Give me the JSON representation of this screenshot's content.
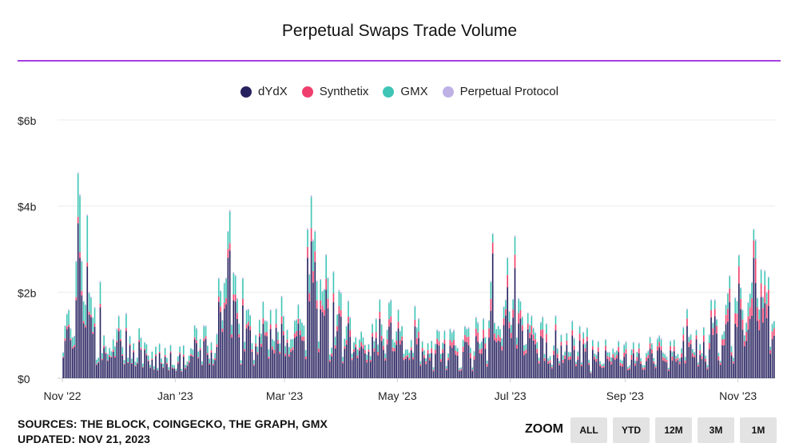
{
  "header": {
    "title": "Perpetual Swaps Trade Volume"
  },
  "legend": [
    {
      "label": "dYdX",
      "color": "#26215f"
    },
    {
      "label": "Synthetix",
      "color": "#f03f6c"
    },
    {
      "label": "GMX",
      "color": "#3fc5b6"
    },
    {
      "label": "Perpetual Protocol",
      "color": "#bfb1e6"
    }
  ],
  "footer": {
    "sources": "SOURCES: THE BLOCK, COINGECKO, THE GRAPH, GMX",
    "updated": "UPDATED: NOV 21, 2023"
  },
  "zoom": {
    "label": "ZOOM",
    "buttons": [
      "ALL",
      "YTD",
      "12M",
      "3M",
      "1M"
    ]
  },
  "chart_data": {
    "type": "bar",
    "stacked": true,
    "frequency": "daily",
    "x_start": "2022-11-01",
    "x_end": "2023-11-20",
    "y_tick_labels": [
      "$0",
      "$2b",
      "$4b",
      "$6b"
    ],
    "y_ticks": [
      0,
      2,
      4,
      6
    ],
    "y_unit": "billions USD",
    "ylim": [
      0,
      6
    ],
    "x_tick_labels": [
      "Nov '22",
      "Jan '23",
      "Mar '23",
      "May '23",
      "Jul '23",
      "Sep '23",
      "Nov '23"
    ],
    "x_ticks": [
      "2022-11-01",
      "2023-01-01",
      "2023-03-01",
      "2023-05-01",
      "2023-07-01",
      "2023-09-01",
      "2023-11-01"
    ],
    "grid": true,
    "legend_position": "top",
    "series_names": [
      "dYdX",
      "Synthetix",
      "GMX",
      "Perpetual Protocol"
    ],
    "series_colors": [
      "#26215f",
      "#f03f6c",
      "#3fc5b6",
      "#bfb1e6"
    ],
    "weekly_estimates": {
      "note_dates": "week starting",
      "dates": [
        "2022-11-01",
        "2022-11-08",
        "2022-11-15",
        "2022-11-22",
        "2022-11-29",
        "2022-12-06",
        "2022-12-13",
        "2022-12-20",
        "2022-12-27",
        "2023-01-03",
        "2023-01-10",
        "2023-01-17",
        "2023-01-24",
        "2023-01-31",
        "2023-02-07",
        "2023-02-14",
        "2023-02-21",
        "2023-02-28",
        "2023-03-07",
        "2023-03-14",
        "2023-03-21",
        "2023-03-28",
        "2023-04-04",
        "2023-04-11",
        "2023-04-18",
        "2023-04-25",
        "2023-05-02",
        "2023-05-09",
        "2023-05-16",
        "2023-05-23",
        "2023-05-30",
        "2023-06-06",
        "2023-06-13",
        "2023-06-20",
        "2023-06-27",
        "2023-07-04",
        "2023-07-11",
        "2023-07-18",
        "2023-07-25",
        "2023-08-01",
        "2023-08-08",
        "2023-08-15",
        "2023-08-22",
        "2023-08-29",
        "2023-09-05",
        "2023-09-12",
        "2023-09-19",
        "2023-09-26",
        "2023-10-03",
        "2023-10-10",
        "2023-10-17",
        "2023-10-24",
        "2023-10-31",
        "2023-11-07",
        "2023-11-14"
      ],
      "dYdX": [
        0.9,
        2.4,
        1.0,
        0.7,
        0.6,
        0.5,
        0.5,
        0.4,
        0.35,
        0.4,
        0.7,
        0.55,
        2.1,
        1.2,
        0.9,
        1.1,
        0.9,
        1.0,
        1.9,
        1.8,
        1.3,
        0.9,
        0.8,
        0.8,
        0.9,
        0.9,
        0.8,
        0.8,
        0.6,
        0.6,
        0.55,
        0.6,
        0.7,
        1.3,
        1.6,
        1.0,
        0.8,
        0.7,
        0.6,
        0.55,
        0.5,
        0.6,
        0.45,
        0.4,
        0.4,
        0.45,
        0.5,
        0.6,
        0.7,
        0.6,
        0.9,
        1.2,
        1.5,
        1.6,
        1.2
      ],
      "Synthetix": [
        0.05,
        0.1,
        0.05,
        0.04,
        0.04,
        0.03,
        0.03,
        0.03,
        0.03,
        0.04,
        0.05,
        0.05,
        0.15,
        0.1,
        0.08,
        0.1,
        0.1,
        0.1,
        0.2,
        0.2,
        0.15,
        0.1,
        0.1,
        0.1,
        0.12,
        0.12,
        0.1,
        0.12,
        0.1,
        0.1,
        0.1,
        0.12,
        0.14,
        0.2,
        0.22,
        0.15,
        0.12,
        0.12,
        0.1,
        0.1,
        0.08,
        0.1,
        0.08,
        0.08,
        0.08,
        0.08,
        0.08,
        0.1,
        0.1,
        0.1,
        0.15,
        0.2,
        0.3,
        0.35,
        0.25
      ],
      "GMX": [
        0.25,
        0.9,
        0.3,
        0.2,
        0.18,
        0.15,
        0.15,
        0.12,
        0.1,
        0.12,
        0.2,
        0.18,
        0.5,
        0.3,
        0.25,
        0.3,
        0.25,
        0.3,
        0.5,
        0.45,
        0.35,
        0.25,
        0.2,
        0.2,
        0.25,
        0.25,
        0.2,
        0.2,
        0.15,
        0.15,
        0.12,
        0.14,
        0.15,
        0.3,
        0.3,
        0.2,
        0.15,
        0.15,
        0.12,
        0.12,
        0.1,
        0.12,
        0.1,
        0.1,
        0.1,
        0.1,
        0.1,
        0.12,
        0.12,
        0.12,
        0.15,
        0.25,
        0.3,
        0.3,
        0.2
      ],
      "Perpetual Protocol": [
        0.02,
        0.03,
        0.02,
        0.02,
        0.02,
        0.01,
        0.01,
        0.01,
        0.01,
        0.01,
        0.02,
        0.02,
        0.03,
        0.02,
        0.02,
        0.02,
        0.02,
        0.02,
        0.03,
        0.03,
        0.02,
        0.02,
        0.02,
        0.02,
        0.02,
        0.02,
        0.02,
        0.02,
        0.02,
        0.02,
        0.02,
        0.02,
        0.02,
        0.02,
        0.02,
        0.02,
        0.02,
        0.02,
        0.02,
        0.02,
        0.02,
        0.02,
        0.02,
        0.02,
        0.02,
        0.02,
        0.02,
        0.02,
        0.02,
        0.02,
        0.02,
        0.02,
        0.02,
        0.02,
        0.02
      ]
    },
    "notable_days": [
      {
        "date": "2022-11-09",
        "dYdX": 3.6,
        "Synthetix": 0.15,
        "GMX": 1.0,
        "Perpetual Protocol": 0.03
      },
      {
        "date": "2023-01-29",
        "dYdX": 2.8,
        "Synthetix": 0.2,
        "GMX": 0.4,
        "Perpetual Protocol": 0.02
      },
      {
        "date": "2023-03-13",
        "dYdX": 2.8,
        "Synthetix": 0.25,
        "GMX": 0.4,
        "Perpetual Protocol": 0.03
      },
      {
        "date": "2023-03-17",
        "dYdX": 2.7,
        "Synthetix": 0.25,
        "GMX": 0.45,
        "Perpetual Protocol": 0.03
      },
      {
        "date": "2023-06-21",
        "dYdX": 2.9,
        "Synthetix": 0.25,
        "GMX": 0.2,
        "Perpetual Protocol": 0.02
      },
      {
        "date": "2023-11-01",
        "dYdX": 2.2,
        "Synthetix": 0.4,
        "GMX": 0.25,
        "Perpetual Protocol": 0.02
      },
      {
        "date": "2023-11-09",
        "dYdX": 2.8,
        "Synthetix": 0.4,
        "GMX": 0.25,
        "Perpetual Protocol": 0.02
      }
    ]
  }
}
